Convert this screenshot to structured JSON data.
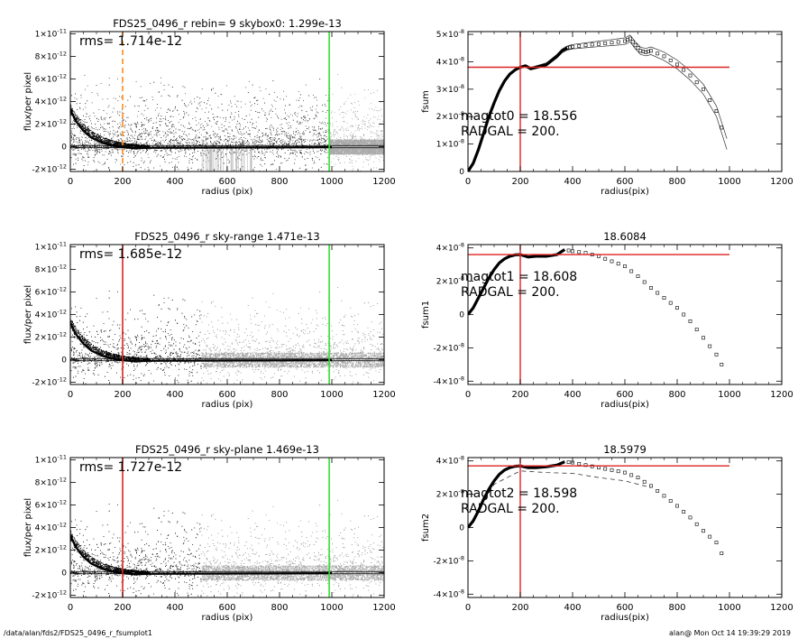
{
  "footer": {
    "path": "/data/alan/fds2/FDS25_0496_r_fsumplot1",
    "stamp": "alan@  Mon Oct 14 19:39:29 2019"
  },
  "chart_data": [
    {
      "type": "scatter",
      "title": "FDS25_0496_r rebin= 9    skybox0:  1.299e-13",
      "annotation": "rms= 1.714e-12",
      "xlabel": "radius (pix)",
      "ylabel": "flux/per pixel",
      "xlim": [
        0,
        1200
      ],
      "ylim": [
        -2.2e-12,
        1.02e-11
      ],
      "xticks": [
        0,
        200,
        400,
        600,
        800,
        1000,
        1200
      ],
      "yticks": [
        {
          "value": 1e-11,
          "mant": "1×10",
          "exp": "-11"
        },
        {
          "value": 8e-12,
          "mant": "8×10",
          "exp": "-12"
        },
        {
          "value": 6e-12,
          "mant": "6×10",
          "exp": "-12"
        },
        {
          "value": 4e-12,
          "mant": "4×10",
          "exp": "-12"
        },
        {
          "value": 2e-12,
          "mant": "2×10",
          "exp": "-12"
        },
        {
          "value": 0,
          "mant": "0",
          "exp": ""
        },
        {
          "value": -2e-12,
          "mant": "-2×10",
          "exp": "-12"
        }
      ],
      "vlines": [
        {
          "x": 200,
          "color": "#ff8c1a",
          "dashed": true
        },
        {
          "x": 990,
          "color": "#33dd33",
          "dashed": false
        }
      ],
      "profile": {
        "x": [
          0,
          20,
          50,
          80,
          120,
          160,
          200,
          250,
          300,
          1000
        ],
        "y": [
          3.3e-12,
          2.3e-12,
          1.4e-12,
          8e-13,
          3.5e-13,
          1e-13,
          -5e-14,
          -1.5e-13,
          -1e-13,
          -5e-14
        ]
      },
      "hlines": [
        1e-13,
        -1e-13
      ],
      "gray_x_start": 990,
      "sticks": {
        "x_range": [
          500,
          700
        ],
        "y_top": -2e-13
      }
    },
    {
      "type": "line",
      "title": "",
      "annotation_lines": [
        "magtot0 =  18.556",
        "RADGAL =    200."
      ],
      "xlabel": "radius(pix)",
      "ylabel": "fsum",
      "xlim": [
        0,
        1200
      ],
      "ylim": [
        0,
        5.1e-08
      ],
      "xticks": [
        0,
        200,
        400,
        600,
        800,
        1000,
        1200
      ],
      "yticks": [
        {
          "value": 5e-08,
          "mant": "5×10",
          "exp": "-8"
        },
        {
          "value": 4e-08,
          "mant": "4×10",
          "exp": "-8"
        },
        {
          "value": 3e-08,
          "mant": "3×10",
          "exp": "-8"
        },
        {
          "value": 2e-08,
          "mant": "2×10",
          "exp": "-8"
        },
        {
          "value": 1e-08,
          "mant": "1×10",
          "exp": "-8"
        },
        {
          "value": 0,
          "mant": "0",
          "exp": ""
        }
      ],
      "crosshair": {
        "x": 200,
        "y": 3.8e-08,
        "x_end": 1000
      },
      "series": [
        {
          "x": [
            0,
            20,
            40,
            60,
            80,
            100,
            120,
            140,
            160,
            180,
            200,
            220,
            240,
            260,
            280,
            300,
            320,
            340,
            360,
            380,
            400,
            450,
            500,
            550,
            600,
            620,
            640,
            660,
            680,
            700,
            750,
            800,
            850,
            900,
            950,
            990
          ],
          "y": [
            0,
            3e-09,
            8e-09,
            1.4e-08,
            2e-08,
            2.5e-08,
            2.95e-08,
            3.3e-08,
            3.55e-08,
            3.7e-08,
            3.8e-08,
            3.85e-08,
            3.75e-08,
            3.8e-08,
            3.85e-08,
            3.9e-08,
            4.05e-08,
            4.2e-08,
            4.4e-08,
            4.5e-08,
            4.55e-08,
            4.6e-08,
            4.65e-08,
            4.7e-08,
            4.75e-08,
            4.85e-08,
            4.6e-08,
            4.4e-08,
            4.35e-08,
            4.4e-08,
            4.2e-08,
            3.9e-08,
            3.5e-08,
            3e-08,
            2.2e-08,
            1e-08
          ]
        }
      ],
      "band": 2e-09
    },
    {
      "type": "scatter",
      "title": "FDS25_0496_r sky-range  1.471e-13",
      "annotation": "rms= 1.685e-12",
      "xlabel": "radius (pix)",
      "ylabel": "flux/per pixel",
      "xlim": [
        0,
        1200
      ],
      "ylim": [
        -2.2e-12,
        1.02e-11
      ],
      "xticks": [
        0,
        200,
        400,
        600,
        800,
        1000,
        1200
      ],
      "yticks": [
        {
          "value": 1e-11,
          "mant": "1×10",
          "exp": "-11"
        },
        {
          "value": 8e-12,
          "mant": "8×10",
          "exp": "-12"
        },
        {
          "value": 6e-12,
          "mant": "6×10",
          "exp": "-12"
        },
        {
          "value": 4e-12,
          "mant": "4×10",
          "exp": "-12"
        },
        {
          "value": 2e-12,
          "mant": "2×10",
          "exp": "-12"
        },
        {
          "value": 0,
          "mant": "0",
          "exp": ""
        },
        {
          "value": -2e-12,
          "mant": "-2×10",
          "exp": "-12"
        }
      ],
      "vlines": [
        {
          "x": 200,
          "color": "#dd2222",
          "dashed": false
        },
        {
          "x": 990,
          "color": "#33dd33",
          "dashed": false
        }
      ],
      "profile": {
        "x": [
          0,
          20,
          50,
          80,
          120,
          160,
          200,
          250,
          300,
          1000
        ],
        "y": [
          3.3e-12,
          2.3e-12,
          1.4e-12,
          8e-13,
          3.5e-13,
          1e-13,
          -5e-14,
          -1.5e-13,
          -1e-13,
          -5e-14
        ]
      },
      "hlines": [
        1e-13,
        -1e-13
      ],
      "gray_x_start": 500
    },
    {
      "type": "line",
      "title": "18.6084",
      "annotation_lines": [
        "magtot1 =  18.608",
        "RADGAL =    200."
      ],
      "xlabel": "radius(pix)",
      "ylabel": "fsum1",
      "xlim": [
        0,
        1200
      ],
      "ylim": [
        -4.2e-08,
        4.2e-08
      ],
      "xticks": [
        0,
        200,
        400,
        600,
        800,
        1000,
        1200
      ],
      "yticks": [
        {
          "value": 4e-08,
          "mant": "4×10",
          "exp": "-8"
        },
        {
          "value": 2e-08,
          "mant": "2×10",
          "exp": "-8"
        },
        {
          "value": 0,
          "mant": "0",
          "exp": ""
        },
        {
          "value": -2e-08,
          "mant": "-2×10",
          "exp": "-8"
        },
        {
          "value": -4e-08,
          "mant": "-4×10",
          "exp": "-8"
        }
      ],
      "crosshair": {
        "x": 200,
        "y": 3.6e-08,
        "x_end": 1000
      },
      "series": [
        {
          "x": [
            0,
            20,
            40,
            60,
            80,
            100,
            120,
            140,
            160,
            180,
            200,
            230,
            260,
            300,
            340,
            370,
            400,
            450,
            500,
            550,
            600,
            650,
            700,
            750,
            800,
            850,
            900,
            950,
            990
          ],
          "y": [
            0,
            4e-09,
            1e-08,
            1.6e-08,
            2.2e-08,
            2.7e-08,
            3.1e-08,
            3.35e-08,
            3.5e-08,
            3.58e-08,
            3.6e-08,
            3.45e-08,
            3.5e-08,
            3.5e-08,
            3.6e-08,
            3.9e-08,
            3.8e-08,
            3.7e-08,
            3.5e-08,
            3.2e-08,
            2.9e-08,
            2.3e-08,
            1.6e-08,
            1e-08,
            4e-09,
            -4e-09,
            -1.4e-08,
            -2.4e-08,
            -3.6e-08
          ]
        }
      ]
    },
    {
      "type": "scatter",
      "title": "FDS25_0496_r sky-plane  1.469e-13",
      "annotation": "rms= 1.727e-12",
      "xlabel": "radius (pix)",
      "ylabel": "flux/per pixel",
      "xlim": [
        0,
        1200
      ],
      "ylim": [
        -2.2e-12,
        1.02e-11
      ],
      "xticks": [
        0,
        200,
        400,
        600,
        800,
        1000,
        1200
      ],
      "yticks": [
        {
          "value": 1e-11,
          "mant": "1×10",
          "exp": "-11"
        },
        {
          "value": 8e-12,
          "mant": "8×10",
          "exp": "-12"
        },
        {
          "value": 6e-12,
          "mant": "6×10",
          "exp": "-12"
        },
        {
          "value": 4e-12,
          "mant": "4×10",
          "exp": "-12"
        },
        {
          "value": 2e-12,
          "mant": "2×10",
          "exp": "-12"
        },
        {
          "value": 0,
          "mant": "0",
          "exp": ""
        },
        {
          "value": -2e-12,
          "mant": "-2×10",
          "exp": "-12"
        }
      ],
      "vlines": [
        {
          "x": 200,
          "color": "#dd2222",
          "dashed": false
        },
        {
          "x": 990,
          "color": "#33dd33",
          "dashed": false
        }
      ],
      "profile": {
        "x": [
          0,
          20,
          50,
          80,
          120,
          160,
          200,
          250,
          300,
          1000
        ],
        "y": [
          3.3e-12,
          2.3e-12,
          1.4e-12,
          8e-13,
          3.5e-13,
          1e-13,
          -5e-14,
          -1.5e-13,
          -1e-13,
          -5e-14
        ]
      },
      "hlines": [
        1e-13,
        -1e-13
      ],
      "gray_x_start": 500
    },
    {
      "type": "line",
      "title": "18.5979",
      "annotation_lines": [
        "magtot2 =  18.598",
        "RADGAL =    200."
      ],
      "xlabel": "radius(pix)",
      "ylabel": "fsum2",
      "xlim": [
        0,
        1200
      ],
      "ylim": [
        -4.2e-08,
        4.2e-08
      ],
      "xticks": [
        0,
        200,
        400,
        600,
        800,
        1000,
        1200
      ],
      "yticks": [
        {
          "value": 4e-08,
          "mant": "4×10",
          "exp": "-8"
        },
        {
          "value": 2e-08,
          "mant": "2×10",
          "exp": "-8"
        },
        {
          "value": 0,
          "mant": "0",
          "exp": ""
        },
        {
          "value": -2e-08,
          "mant": "-2×10",
          "exp": "-8"
        },
        {
          "value": -4e-08,
          "mant": "-4×10",
          "exp": "-8"
        }
      ],
      "crosshair": {
        "x": 200,
        "y": 3.7e-08,
        "x_end": 1000
      },
      "series": [
        {
          "x": [
            0,
            20,
            40,
            60,
            80,
            100,
            120,
            140,
            160,
            180,
            200,
            230,
            260,
            300,
            340,
            370,
            400,
            450,
            500,
            550,
            600,
            650,
            700,
            750,
            800,
            850,
            900,
            950,
            990
          ],
          "y": [
            0,
            4e-09,
            1e-08,
            1.7e-08,
            2.3e-08,
            2.8e-08,
            3.2e-08,
            3.45e-08,
            3.6e-08,
            3.68e-08,
            3.7e-08,
            3.6e-08,
            3.6e-08,
            3.65e-08,
            3.75e-08,
            3.95e-08,
            3.9e-08,
            3.75e-08,
            3.6e-08,
            3.45e-08,
            3.3e-08,
            3e-08,
            2.5e-08,
            1.9e-08,
            1.3e-08,
            6e-09,
            -2e-09,
            -9e-09,
            -2.2e-08
          ]
        }
      ],
      "dashed_series": {
        "x": [
          0,
          100,
          200,
          300,
          400,
          500,
          600,
          700
        ],
        "y": [
          0,
          2.6e-08,
          3.4e-08,
          3.3e-08,
          3.25e-08,
          3e-08,
          2.8e-08,
          2.4e-08
        ]
      }
    }
  ]
}
